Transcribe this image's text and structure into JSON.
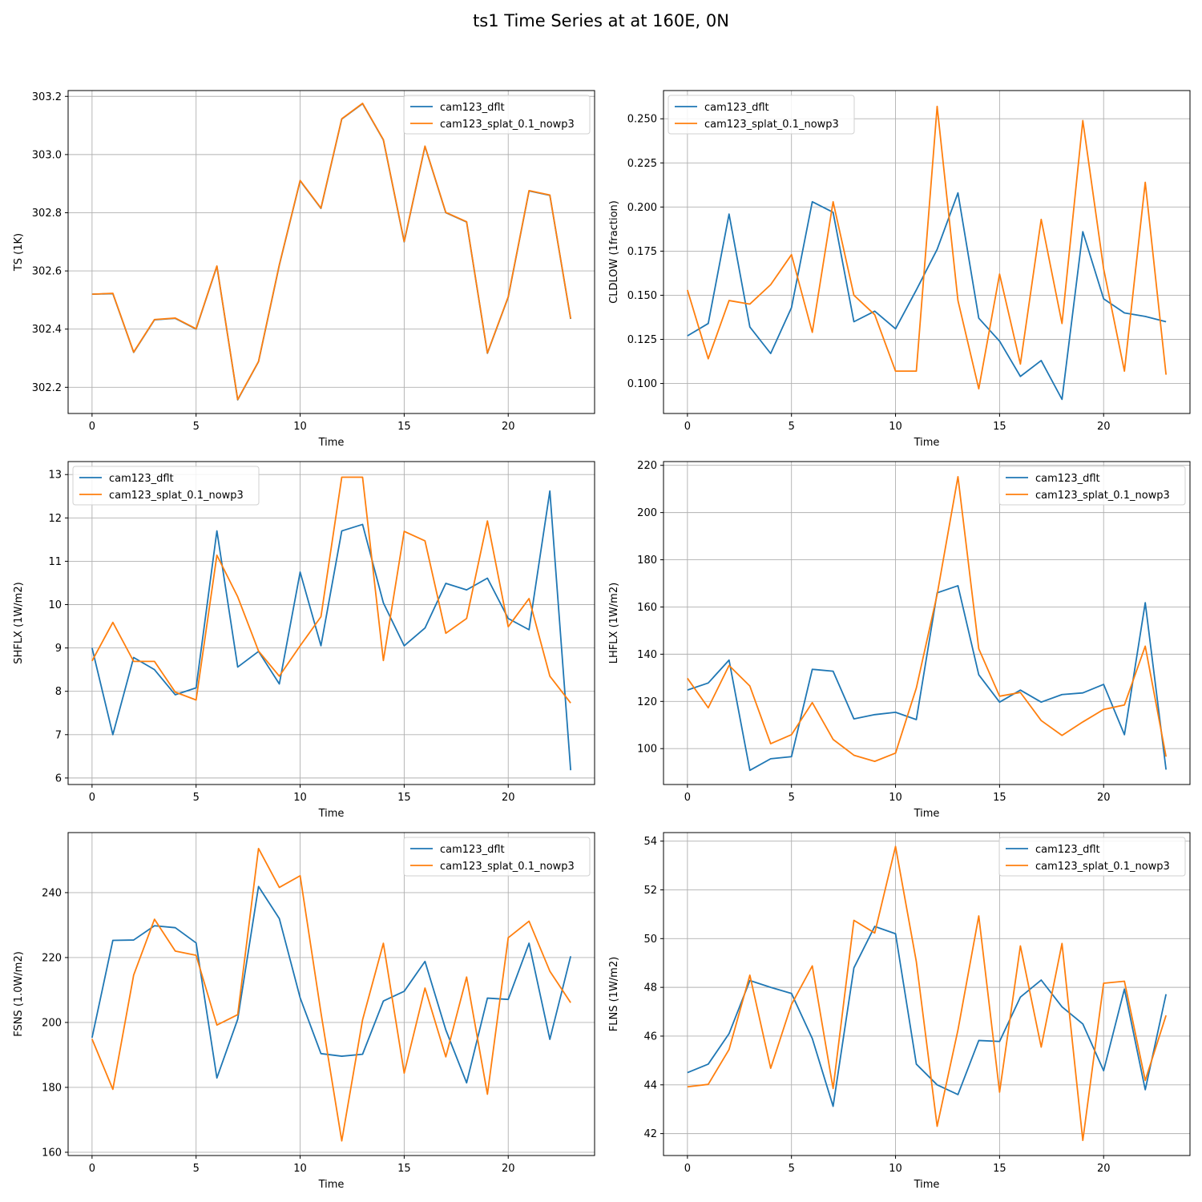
{
  "figure": {
    "title": "ts1 Time Series at at 160E, 0N",
    "colors": {
      "cam123_dflt": "#1f77b4",
      "cam123_splat_0.1_nowp3": "#ff7f0e",
      "grid": "#b0b0b0"
    }
  },
  "chart_data": [
    {
      "type": "line",
      "xlabel": "Time",
      "ylabel": "TS (1K)",
      "xlim": [
        -1.15,
        24.15
      ],
      "ylim": [
        302.11,
        303.22
      ],
      "xticks": [
        0,
        5,
        10,
        15,
        20
      ],
      "yticks": [
        302.2,
        302.4,
        302.6,
        302.8,
        303.0,
        303.2
      ],
      "ytick_labels": [
        "302.2",
        "302.4",
        "302.6",
        "302.8",
        "303.0",
        "303.2"
      ],
      "grid": true,
      "legend": "top-right",
      "x": [
        0,
        1,
        2,
        3,
        4,
        5,
        6,
        7,
        8,
        9,
        10,
        11,
        12,
        13,
        14,
        15,
        16,
        17,
        18,
        19,
        20,
        21,
        22,
        23
      ],
      "series": [
        {
          "name": "cam123_dflt",
          "color": "#1f77b4",
          "values": [
            302.52,
            302.522,
            302.32,
            302.432,
            302.437,
            302.4,
            302.616,
            302.157,
            302.288,
            302.62,
            302.91,
            302.815,
            303.122,
            303.175,
            303.05,
            302.7,
            303.028,
            302.8,
            302.768,
            302.317,
            302.51,
            302.875,
            302.86,
            302.435
          ]
        },
        {
          "name": "cam123_splat_0.1_nowp3",
          "color": "#ff7f0e",
          "values": [
            302.52,
            302.523,
            302.321,
            302.433,
            302.438,
            302.401,
            302.617,
            302.158,
            302.289,
            302.621,
            302.911,
            302.816,
            303.123,
            303.176,
            303.051,
            302.701,
            303.029,
            302.801,
            302.769,
            302.318,
            302.511,
            302.876,
            302.861,
            302.436
          ]
        }
      ]
    },
    {
      "type": "line",
      "xlabel": "Time",
      "ylabel": "CLDLOW (1fraction)",
      "xlim": [
        -1.15,
        24.15
      ],
      "ylim": [
        0.083,
        0.266
      ],
      "xticks": [
        0,
        5,
        10,
        15,
        20
      ],
      "yticks": [
        0.1,
        0.125,
        0.15,
        0.175,
        0.2,
        0.225,
        0.25
      ],
      "ytick_labels": [
        "0.100",
        "0.125",
        "0.150",
        "0.175",
        "0.200",
        "0.225",
        "0.250"
      ],
      "grid": true,
      "legend": "top-left",
      "x": [
        0,
        1,
        2,
        3,
        4,
        5,
        6,
        7,
        8,
        9,
        10,
        11,
        12,
        13,
        14,
        15,
        16,
        17,
        18,
        19,
        20,
        21,
        22,
        23
      ],
      "series": [
        {
          "name": "cam123_dflt",
          "color": "#1f77b4",
          "values": [
            0.127,
            0.134,
            0.196,
            0.132,
            0.117,
            0.143,
            0.203,
            0.197,
            0.135,
            0.141,
            0.131,
            0.153,
            0.176,
            0.208,
            0.137,
            0.124,
            0.104,
            0.113,
            0.091,
            0.186,
            0.148,
            0.14,
            0.138,
            0.135
          ]
        },
        {
          "name": "cam123_splat_0.1_nowp3",
          "color": "#ff7f0e",
          "values": [
            0.153,
            0.114,
            0.147,
            0.145,
            0.156,
            0.173,
            0.129,
            0.203,
            0.15,
            0.139,
            0.107,
            0.107,
            0.257,
            0.147,
            0.097,
            0.162,
            0.111,
            0.193,
            0.134,
            0.249,
            0.165,
            0.107,
            0.214,
            0.105
          ]
        }
      ]
    },
    {
      "type": "line",
      "xlabel": "Time",
      "ylabel": "SHFLX (1W/m2)",
      "xlim": [
        -1.15,
        24.15
      ],
      "ylim": [
        5.85,
        13.3
      ],
      "xticks": [
        0,
        5,
        10,
        15,
        20
      ],
      "yticks": [
        6,
        7,
        8,
        9,
        10,
        11,
        12,
        13
      ],
      "ytick_labels": [
        "6",
        "7",
        "8",
        "9",
        "10",
        "11",
        "12",
        "13"
      ],
      "grid": true,
      "legend": "top-left",
      "x": [
        0,
        1,
        2,
        3,
        4,
        5,
        6,
        7,
        8,
        9,
        10,
        11,
        12,
        13,
        14,
        15,
        16,
        17,
        18,
        19,
        20,
        21,
        22,
        23
      ],
      "series": [
        {
          "name": "cam123_dflt",
          "color": "#1f77b4",
          "values": [
            9.0,
            7.0,
            8.78,
            8.5,
            7.92,
            8.08,
            11.7,
            8.56,
            8.92,
            8.17,
            10.75,
            9.05,
            11.7,
            11.85,
            10.04,
            9.05,
            9.46,
            10.49,
            10.34,
            10.61,
            9.68,
            9.42,
            12.62,
            6.18
          ]
        },
        {
          "name": "cam123_splat_0.1_nowp3",
          "color": "#ff7f0e",
          "values": [
            8.7,
            9.59,
            8.69,
            8.69,
            7.98,
            7.8,
            11.14,
            10.18,
            8.93,
            8.35,
            9.05,
            9.72,
            12.94,
            12.94,
            8.71,
            11.69,
            11.47,
            9.34,
            9.68,
            11.93,
            9.49,
            10.14,
            8.35,
            7.73
          ]
        }
      ]
    },
    {
      "type": "line",
      "xlabel": "Time",
      "ylabel": "LHFLX (1W/m2)",
      "xlim": [
        -1.15,
        24.15
      ],
      "ylim": [
        84.8,
        221.6
      ],
      "xticks": [
        0,
        5,
        10,
        15,
        20
      ],
      "yticks": [
        100,
        120,
        140,
        160,
        180,
        200,
        220
      ],
      "ytick_labels": [
        "100",
        "120",
        "140",
        "160",
        "180",
        "200",
        "220"
      ],
      "grid": true,
      "legend": "top-right",
      "x": [
        0,
        1,
        2,
        3,
        4,
        5,
        6,
        7,
        8,
        9,
        10,
        11,
        12,
        13,
        14,
        15,
        16,
        17,
        18,
        19,
        20,
        21,
        22,
        23
      ],
      "series": [
        {
          "name": "cam123_dflt",
          "color": "#1f77b4",
          "values": [
            124.8,
            127.8,
            137.5,
            90.8,
            95.7,
            96.6,
            133.6,
            132.8,
            112.6,
            114.4,
            115.4,
            112.3,
            166.0,
            169.0,
            131.3,
            119.7,
            124.8,
            119.7,
            122.9,
            123.6,
            127.2,
            105.9,
            161.8,
            91.1
          ]
        },
        {
          "name": "cam123_splat_0.1_nowp3",
          "color": "#ff7f0e",
          "values": [
            129.8,
            117.3,
            135.2,
            126.5,
            102.1,
            105.9,
            119.5,
            103.9,
            97.2,
            94.6,
            98.1,
            125.7,
            165.3,
            215.2,
            142.3,
            122.2,
            123.8,
            111.9,
            105.6,
            111.3,
            116.6,
            118.5,
            143.4,
            96.6
          ]
        }
      ]
    },
    {
      "type": "line",
      "xlabel": "Time",
      "ylabel": "FSNS (1.0W/m2)",
      "xlim": [
        -1.15,
        24.15
      ],
      "ylim": [
        159.0,
        258.5
      ],
      "xticks": [
        0,
        5,
        10,
        15,
        20
      ],
      "yticks": [
        160,
        180,
        200,
        220,
        240
      ],
      "ytick_labels": [
        "160",
        "180",
        "200",
        "220",
        "240"
      ],
      "grid": true,
      "legend": "top-right",
      "x": [
        0,
        1,
        2,
        3,
        4,
        5,
        6,
        7,
        8,
        9,
        10,
        11,
        12,
        13,
        14,
        15,
        16,
        17,
        18,
        19,
        20,
        21,
        22,
        23
      ],
      "series": [
        {
          "name": "cam123_dflt",
          "color": "#1f77b4",
          "values": [
            195.3,
            225.3,
            225.4,
            229.8,
            229.2,
            224.5,
            182.9,
            201.0,
            241.9,
            232.0,
            207.6,
            190.4,
            189.6,
            190.2,
            206.6,
            209.6,
            218.8,
            197.7,
            181.4,
            207.5,
            207.1,
            224.4,
            194.8,
            220.4
          ]
        },
        {
          "name": "cam123_splat_0.1_nowp3",
          "color": "#ff7f0e",
          "values": [
            194.9,
            179.4,
            214.6,
            231.8,
            222.0,
            220.7,
            199.2,
            202.4,
            253.6,
            241.6,
            245.2,
            203.0,
            163.5,
            200.8,
            224.4,
            184.4,
            210.6,
            189.4,
            214.0,
            177.9,
            226.1,
            231.2,
            215.8,
            206.1
          ]
        }
      ]
    },
    {
      "type": "line",
      "xlabel": "Time",
      "ylabel": "FLNS (1W/m2)",
      "xlim": [
        -1.15,
        24.15
      ],
      "ylim": [
        41.1,
        54.35
      ],
      "xticks": [
        0,
        5,
        10,
        15,
        20
      ],
      "yticks": [
        42,
        44,
        46,
        48,
        50,
        52,
        54
      ],
      "ytick_labels": [
        "42",
        "44",
        "46",
        "48",
        "50",
        "52",
        "54"
      ],
      "grid": true,
      "legend": "top-right",
      "x": [
        0,
        1,
        2,
        3,
        4,
        5,
        6,
        7,
        8,
        9,
        10,
        11,
        12,
        13,
        14,
        15,
        16,
        17,
        18,
        19,
        20,
        21,
        22,
        23
      ],
      "series": [
        {
          "name": "cam123_dflt",
          "color": "#1f77b4",
          "values": [
            44.5,
            44.85,
            46.1,
            48.28,
            48.0,
            47.75,
            45.9,
            43.12,
            48.8,
            50.5,
            50.2,
            44.85,
            44.0,
            43.6,
            45.82,
            45.78,
            47.6,
            48.3,
            47.2,
            46.5,
            44.58,
            47.93,
            43.8,
            47.72
          ]
        },
        {
          "name": "cam123_splat_0.1_nowp3",
          "color": "#ff7f0e",
          "values": [
            43.92,
            44.02,
            45.45,
            48.5,
            44.68,
            47.3,
            48.88,
            43.85,
            50.75,
            50.23,
            53.78,
            49.05,
            42.3,
            46.25,
            50.93,
            43.7,
            49.7,
            45.55,
            49.8,
            41.72,
            48.17,
            48.25,
            44.18,
            46.85
          ]
        }
      ]
    }
  ]
}
